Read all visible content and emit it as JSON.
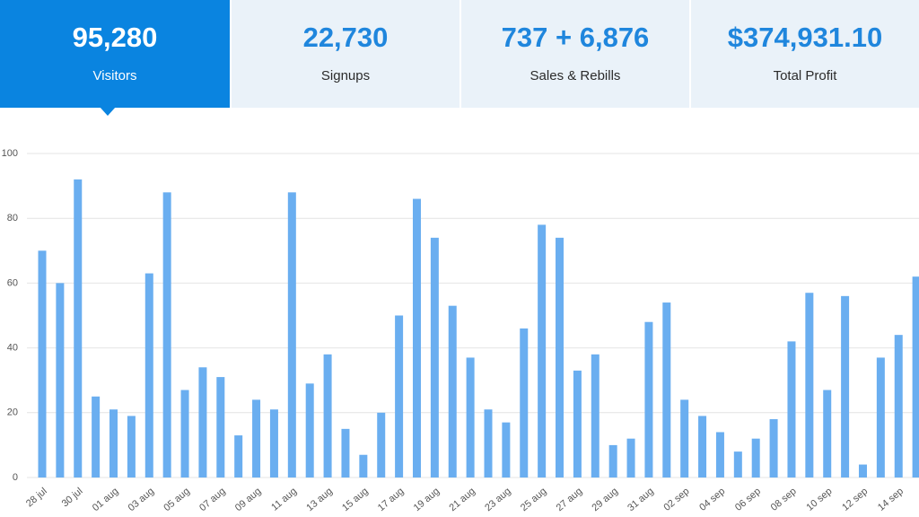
{
  "tabs": [
    {
      "value": "95,280",
      "label": "Visitors"
    },
    {
      "value": "22,730",
      "label": "Signups"
    },
    {
      "value": "737 + 6,876",
      "label": "Sales & Rebills"
    },
    {
      "value": "$374,931.10",
      "label": "Total Profit"
    }
  ],
  "chart_data": {
    "type": "bar",
    "categories": [
      "28 jul",
      null,
      "30 jul",
      null,
      "01 aug",
      null,
      "03 aug",
      null,
      "05 aug",
      null,
      "07 aug",
      null,
      "09 aug",
      null,
      "11 aug",
      null,
      "13 aug",
      null,
      "15 aug",
      null,
      "17 aug",
      null,
      "19 aug",
      null,
      "21 aug",
      null,
      "23 aug",
      null,
      "25 aug",
      null,
      "27 aug",
      null,
      "29 aug",
      null,
      "31 aug",
      null,
      "02 sep",
      null,
      "04 sep",
      null,
      "06 sep",
      null,
      "08 sep",
      null,
      "10 sep",
      null,
      "12 sep",
      null,
      "14 sep",
      null
    ],
    "values": [
      70,
      60,
      92,
      25,
      21,
      19,
      63,
      88,
      27,
      34,
      31,
      13,
      24,
      21,
      88,
      29,
      38,
      15,
      7,
      20,
      50,
      86,
      74,
      53,
      37,
      21,
      17,
      46,
      78,
      74,
      33,
      38,
      10,
      12,
      48,
      54,
      24,
      19,
      14,
      8,
      12,
      18,
      42,
      57,
      27,
      56,
      4,
      37,
      44,
      62
    ],
    "color": "#6aaef0",
    "ylim": [
      0,
      100
    ],
    "yticks": [
      0,
      20,
      40,
      60,
      80,
      100
    ],
    "grid": true
  }
}
